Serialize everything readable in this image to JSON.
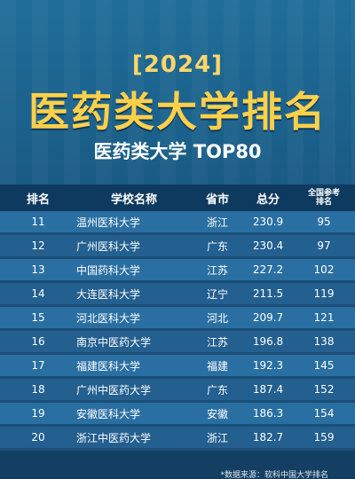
{
  "header": {
    "year": "[2024]",
    "title": "医药类大学排名",
    "subtitle": "医药类大学 TOP80"
  },
  "table": {
    "columns": {
      "rank": "排名",
      "school": "学校名称",
      "province": "省市",
      "score": "总分",
      "national": "全国参考排名"
    },
    "rows": [
      {
        "rank": "11",
        "school": "温州医科大学",
        "province": "浙江",
        "score": "230.9",
        "national": "95"
      },
      {
        "rank": "12",
        "school": "广州医科大学",
        "province": "广东",
        "score": "230.4",
        "national": "97"
      },
      {
        "rank": "13",
        "school": "中国药科大学",
        "province": "江苏",
        "score": "227.2",
        "national": "102"
      },
      {
        "rank": "14",
        "school": "大连医科大学",
        "province": "辽宁",
        "score": "211.5",
        "national": "119"
      },
      {
        "rank": "15",
        "school": "河北医科大学",
        "province": "河北",
        "score": "209.7",
        "national": "121"
      },
      {
        "rank": "16",
        "school": "南京中医药大学",
        "province": "江苏",
        "score": "196.8",
        "national": "138"
      },
      {
        "rank": "17",
        "school": "福建医科大学",
        "province": "福建",
        "score": "192.3",
        "national": "145"
      },
      {
        "rank": "18",
        "school": "广州中医药大学",
        "province": "广东",
        "score": "187.4",
        "national": "152"
      },
      {
        "rank": "19",
        "school": "安徽医科大学",
        "province": "安徽",
        "score": "186.3",
        "national": "154"
      },
      {
        "rank": "20",
        "school": "浙江中医药大学",
        "province": "浙江",
        "score": "182.7",
        "national": "159"
      }
    ]
  },
  "footnote": "*数据来源：软科中国大学排名"
}
